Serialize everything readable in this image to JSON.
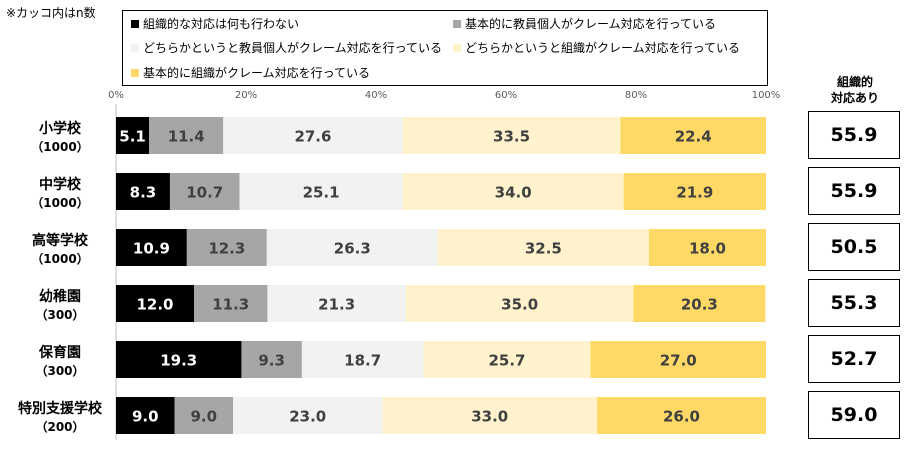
{
  "note": "※カッコ内はn数",
  "summary": {
    "header_line1": "組織的",
    "header_line2": "対応あり",
    "values": [
      "55.9",
      "55.9",
      "50.5",
      "55.3",
      "52.7",
      "59.0"
    ]
  },
  "colors": {
    "series": [
      "#000000",
      "#a6a6a6",
      "#f2f2f2",
      "#fff2cc",
      "#ffd966"
    ],
    "label_text": [
      "#ffffff",
      "#404040",
      "#404040",
      "#404040",
      "#404040"
    ]
  },
  "chart_data": {
    "type": "bar",
    "orientation": "horizontal",
    "stacked": true,
    "categories": [
      "小学校",
      "中学校",
      "高等学校",
      "幼稚園",
      "保育園",
      "特別支援学校"
    ],
    "category_n": [
      "（1000）",
      "（1000）",
      "（1000）",
      "（300）",
      "（300）",
      "（200）"
    ],
    "series": [
      {
        "name": "組織的な対応は何も行わない",
        "values": [
          5.1,
          8.3,
          10.9,
          12.0,
          19.3,
          9.0
        ]
      },
      {
        "name": "基本的に教員個人がクレーム対応を行っている",
        "values": [
          11.4,
          10.7,
          12.3,
          11.3,
          9.3,
          9.0
        ]
      },
      {
        "name": "どちらかというと教員個人がクレーム対応を行っている",
        "values": [
          27.6,
          25.1,
          26.3,
          21.3,
          18.7,
          23.0
        ]
      },
      {
        "name": "どちらかというと組織がクレーム対応を行っている",
        "values": [
          33.5,
          34.0,
          32.5,
          35.0,
          25.7,
          33.0
        ]
      },
      {
        "name": "基本的に組織がクレーム対応を行っている",
        "values": [
          22.4,
          21.9,
          18.0,
          20.3,
          27.0,
          26.0
        ]
      }
    ],
    "x_ticks": [
      "0%",
      "20%",
      "40%",
      "60%",
      "80%",
      "100%"
    ],
    "xlim": [
      0,
      100
    ],
    "legend_position": "top",
    "grid": false
  }
}
